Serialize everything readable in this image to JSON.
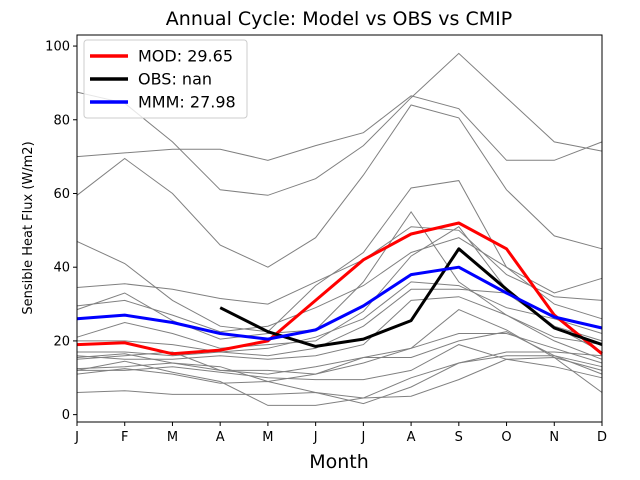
{
  "chart_data": {
    "type": "line",
    "title": "Annual Cycle: Model vs OBS vs CMIP",
    "xlabel": "Month",
    "ylabel": "Sensible Heat Flux (W/m2)",
    "categories": [
      "J",
      "F",
      "M",
      "A",
      "M",
      "J",
      "J",
      "A",
      "S",
      "O",
      "N",
      "D"
    ],
    "ylim": [
      -2,
      103
    ],
    "yticks": [
      0,
      20,
      40,
      60,
      80,
      100
    ],
    "legend_position": "top-left",
    "background_series": [
      [
        87.5,
        84.5,
        74.0,
        61.0,
        59.5,
        64.0,
        73.0,
        86.0,
        98.0,
        86.0,
        74.0,
        71.5
      ],
      [
        70.0,
        71.0,
        72.0,
        72.0,
        69.0,
        73.0,
        76.5,
        86.5,
        83.0,
        69.0,
        69.0,
        74.0
      ],
      [
        59.5,
        69.5,
        60.0,
        46.0,
        40.0,
        48.0,
        65.0,
        84.0,
        80.5,
        61.0,
        48.5,
        45.0
      ],
      [
        47.0,
        41.0,
        31.0,
        24.0,
        22.5,
        35.0,
        44.0,
        61.5,
        63.5,
        40.0,
        33.0,
        37.0
      ],
      [
        34.5,
        35.5,
        34.0,
        31.5,
        30.0,
        36.0,
        42.0,
        51.0,
        50.0,
        38.0,
        32.0,
        31.0
      ],
      [
        29.5,
        31.0,
        27.0,
        22.5,
        24.0,
        29.0,
        35.0,
        44.0,
        48.0,
        40.0,
        30.0,
        26.0
      ],
      [
        28.5,
        33.0,
        25.5,
        20.5,
        22.0,
        23.0,
        36.0,
        55.0,
        36.0,
        27.0,
        21.0,
        19.0
      ],
      [
        21.0,
        25.0,
        22.0,
        18.0,
        19.0,
        20.0,
        28.0,
        43.0,
        51.0,
        34.0,
        24.0,
        20.0
      ],
      [
        20.0,
        20.0,
        19.0,
        17.0,
        18.0,
        21.0,
        26.0,
        36.0,
        35.0,
        29.0,
        26.0,
        22.0
      ],
      [
        17.0,
        17.0,
        16.0,
        17.0,
        16.0,
        18.0,
        24.0,
        34.0,
        34.0,
        33.0,
        24.0,
        17.0
      ],
      [
        16.0,
        15.0,
        15.0,
        16.0,
        15.0,
        16.0,
        19.0,
        31.0,
        32.0,
        27.0,
        20.0,
        15.0
      ],
      [
        15.5,
        16.5,
        14.0,
        12.0,
        11.0,
        13.0,
        15.5,
        18.0,
        28.5,
        23.0,
        15.5,
        12.0
      ],
      [
        15.0,
        16.0,
        17.0,
        12.0,
        12.0,
        11.0,
        14.0,
        18.0,
        22.0,
        22.0,
        18.0,
        14.0
      ],
      [
        12.5,
        13.0,
        14.0,
        13.0,
        9.0,
        11.0,
        15.5,
        15.5,
        20.0,
        22.5,
        16.0,
        11.0
      ],
      [
        12.0,
        12.0,
        13.0,
        11.5,
        10.0,
        9.5,
        9.5,
        12.0,
        19.0,
        15.0,
        13.0,
        10.0
      ],
      [
        11.0,
        12.5,
        11.0,
        8.5,
        9.0,
        6.0,
        3.0,
        7.5,
        14.0,
        16.0,
        16.0,
        13.0
      ],
      [
        12.0,
        14.5,
        11.5,
        9.0,
        2.5,
        2.5,
        4.5,
        5.0,
        9.5,
        15.0,
        15.5,
        6.0
      ],
      [
        6.0,
        6.5,
        5.5,
        5.5,
        5.5,
        6.0,
        4.5,
        10.0,
        14.0,
        17.0,
        17.0,
        16.0
      ]
    ],
    "series": [
      {
        "name": "MOD",
        "legend": "MOD: 29.65",
        "color": "#ff0000",
        "values": [
          19.0,
          19.5,
          16.5,
          17.5,
          20.0,
          31.0,
          42.0,
          49.0,
          52.0,
          45.0,
          27.0,
          16.5
        ]
      },
      {
        "name": "OBS",
        "legend": "OBS: nan",
        "color": "#000000",
        "values": [
          null,
          null,
          null,
          29.0,
          22.5,
          18.5,
          20.5,
          25.5,
          45.0,
          34.0,
          23.5,
          19.0
        ]
      },
      {
        "name": "MMM",
        "legend": "MMM: 27.98",
        "color": "#0000ff",
        "values": [
          26.0,
          27.0,
          25.0,
          22.0,
          20.5,
          23.0,
          29.5,
          38.0,
          40.0,
          33.0,
          26.5,
          23.5
        ]
      }
    ]
  }
}
